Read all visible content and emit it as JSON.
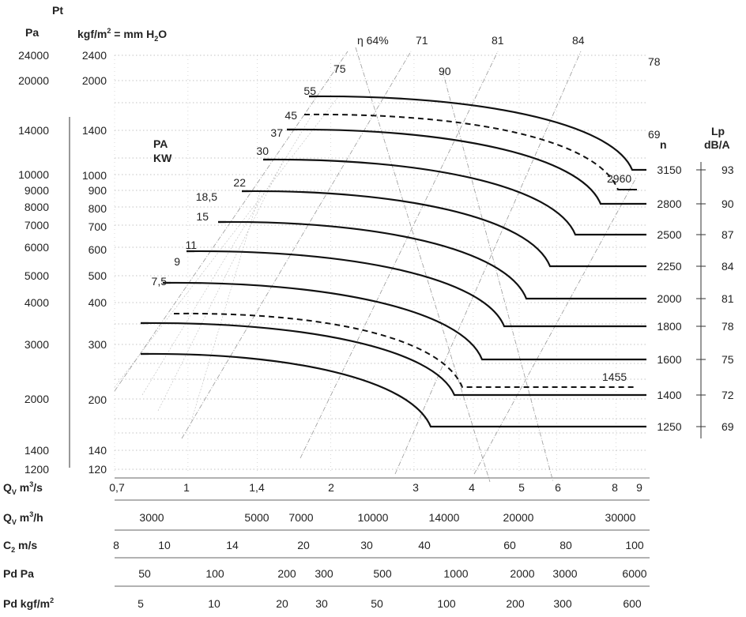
{
  "chart_data": {
    "type": "line",
    "pressure_axis": {
      "title": "Pt",
      "pa_label": "Pa",
      "kgf_label": "kgf/m",
      "kgf_sup": "2",
      "kgf_eq": " = mm H",
      "kgf_sub": "2",
      "kgf_end": "O",
      "pa_ticks": [
        "24000",
        "20000",
        "14000",
        "10000",
        "9000",
        "8000",
        "7000",
        "6000",
        "5000",
        "4000",
        "3000",
        "2000",
        "1400",
        "1200"
      ],
      "kgf_ticks": [
        "2400",
        "2000",
        "1400",
        "1000",
        "900",
        "800",
        "700",
        "600",
        "500",
        "400",
        "300",
        "200",
        "140",
        "120"
      ]
    },
    "power_label": [
      "PA",
      "KW"
    ],
    "efficiency_label": "η 64%",
    "efficiency_values": [
      "71",
      "81",
      "84",
      "78",
      "75",
      "90",
      "69"
    ],
    "speed_axis": {
      "title": "n",
      "values": [
        "3150",
        "2800",
        "2500",
        "2250",
        "2000",
        "1800",
        "1600",
        "1400",
        "1250"
      ]
    },
    "dashed_speed_labels": [
      "2960",
      "1455"
    ],
    "power_curves": [
      "55",
      "45",
      "37",
      "30",
      "22",
      "18,5",
      "15",
      "11",
      "9",
      "7,5"
    ],
    "sound_axis": {
      "title": [
        "Lp",
        "dB/A"
      ],
      "values": [
        "93",
        "90",
        "87",
        "84",
        "81",
        "78",
        "75",
        "72",
        "69"
      ]
    },
    "bottom_scales": [
      {
        "label": "Q",
        "sub": "V",
        "unit": " m",
        "sup": "3",
        "unit2": "/s",
        "ticks": [
          "0,7",
          "1",
          "1,4",
          "2",
          "3",
          "4",
          "5",
          "6",
          "8",
          "9"
        ]
      },
      {
        "label": "Q",
        "sub": "V",
        "unit": " m",
        "sup": "3",
        "unit2": "/h",
        "ticks": [
          "3000",
          "5000",
          "7000",
          "10000",
          "14000",
          "20000",
          "30000"
        ]
      },
      {
        "label": "C",
        "sub": "2",
        "unit": " m/s",
        "sup": "",
        "unit2": "",
        "ticks": [
          "8",
          "10",
          "14",
          "20",
          "30",
          "40",
          "60",
          "80",
          "100"
        ]
      },
      {
        "label": "Pd Pa",
        "sub": "",
        "unit": "",
        "sup": "",
        "unit2": "",
        "ticks": [
          "50",
          "100",
          "200",
          "300",
          "500",
          "1000",
          "2000",
          "3000",
          "6000"
        ]
      },
      {
        "label": "Pd kgf/m",
        "sub": "",
        "unit": "",
        "sup": "2",
        "unit2": "",
        "ticks": [
          "5",
          "10",
          "20",
          "30",
          "50",
          "100",
          "200",
          "300",
          "600"
        ]
      }
    ],
    "curves": [
      {
        "speed": "3150",
        "pressure_pa": 17800,
        "flow_max_m3s": 8.6
      },
      {
        "speed": "2800",
        "pressure_pa": 14000,
        "flow_max_m3s": 7.7
      },
      {
        "speed": "2500",
        "pressure_pa": 11300,
        "flow_max_m3s": 6.9
      },
      {
        "speed": "2250",
        "pressure_pa": 9100,
        "flow_max_m3s": 6.2
      },
      {
        "speed": "2000",
        "pressure_pa": 7200,
        "flow_max_m3s": 5.5
      },
      {
        "speed": "1800",
        "pressure_pa": 5800,
        "flow_max_m3s": 4.9
      },
      {
        "speed": "1600",
        "pressure_pa": 4600,
        "flow_max_m3s": 4.4
      },
      {
        "speed": "1400",
        "pressure_pa": 3500,
        "flow_max_m3s": 3.9
      },
      {
        "speed": "1250",
        "pressure_pa": 2800,
        "flow_max_m3s": 3.4
      }
    ],
    "dashed_curves": [
      {
        "speed": "2960",
        "pressure_pa": 15700,
        "flow_max_m3s": 8.2
      },
      {
        "speed": "1455",
        "pressure_pa": 3800,
        "flow_max_m3s": 4.0
      }
    ]
  }
}
